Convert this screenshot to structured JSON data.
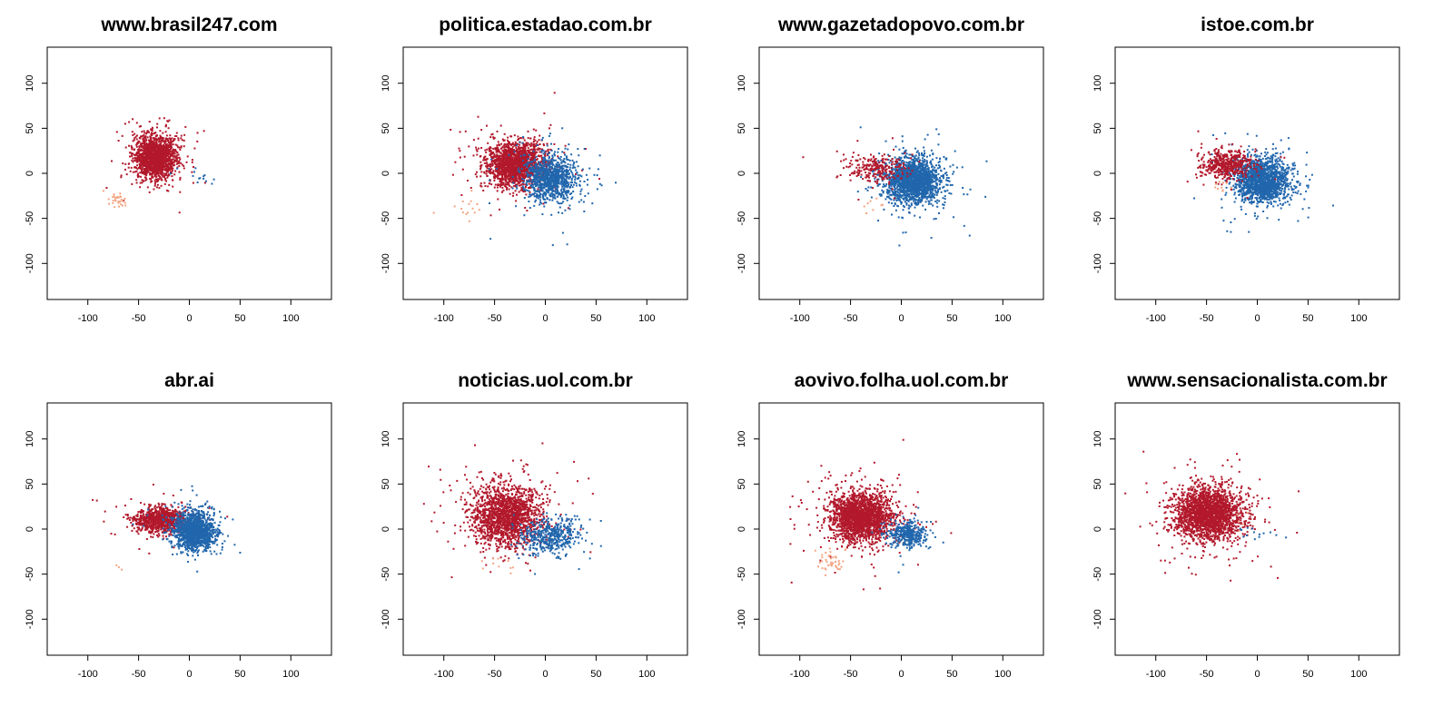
{
  "colors": {
    "left_cluster": "#B2182B",
    "right_cluster": "#2166AC",
    "minor_cluster": "#F4A582",
    "background": "#FFFFFF",
    "axis": "#000000"
  },
  "chart_data": [
    {
      "type": "scatter",
      "title": "www.brasil247.com",
      "xlim": [
        -140,
        140
      ],
      "ylim": [
        -140,
        140
      ],
      "xticks": [
        -100,
        -50,
        0,
        50,
        100
      ],
      "yticks": [
        -100,
        -50,
        0,
        50,
        100
      ],
      "grid": false,
      "clusters": [
        {
          "color": "left_cluster",
          "center": [
            -33,
            18
          ],
          "spread": [
            10,
            12
          ],
          "n": 1600
        },
        {
          "color": "right_cluster",
          "center": [
            5,
            -4
          ],
          "spread": [
            12,
            6
          ],
          "n": 14
        },
        {
          "color": "minor_cluster",
          "center": [
            -70,
            -30
          ],
          "spread": [
            6,
            4
          ],
          "n": 30
        }
      ]
    },
    {
      "type": "scatter",
      "title": "politica.estadao.com.br",
      "xlim": [
        -140,
        140
      ],
      "ylim": [
        -140,
        140
      ],
      "xticks": [
        -100,
        -50,
        0,
        50,
        100
      ],
      "yticks": [
        -100,
        -50,
        0,
        50,
        100
      ],
      "grid": false,
      "clusters": [
        {
          "color": "left_cluster",
          "center": [
            -30,
            10
          ],
          "spread": [
            14,
            12
          ],
          "n": 1700
        },
        {
          "color": "right_cluster",
          "center": [
            5,
            -6
          ],
          "spread": [
            13,
            12
          ],
          "n": 1000
        },
        {
          "color": "minor_cluster",
          "center": [
            -75,
            -40
          ],
          "spread": [
            8,
            6
          ],
          "n": 15
        }
      ]
    },
    {
      "type": "scatter",
      "title": "www.gazetadopovo.com.br",
      "xlim": [
        -140,
        140
      ],
      "ylim": [
        -140,
        140
      ],
      "xticks": [
        -100,
        -50,
        0,
        50,
        100
      ],
      "yticks": [
        -100,
        -50,
        0,
        50,
        100
      ],
      "grid": false,
      "clusters": [
        {
          "color": "right_cluster",
          "center": [
            12,
            -8
          ],
          "spread": [
            13,
            12
          ],
          "n": 1800
        },
        {
          "color": "left_cluster",
          "center": [
            -25,
            5
          ],
          "spread": [
            14,
            8
          ],
          "n": 250
        },
        {
          "color": "minor_cluster",
          "center": [
            -30,
            -35
          ],
          "spread": [
            6,
            4
          ],
          "n": 8
        }
      ]
    },
    {
      "type": "scatter",
      "title": "istoe.com.br",
      "xlim": [
        -140,
        140
      ],
      "ylim": [
        -140,
        140
      ],
      "xticks": [
        -100,
        -50,
        0,
        50,
        100
      ],
      "yticks": [
        -100,
        -50,
        0,
        50,
        100
      ],
      "grid": false,
      "clusters": [
        {
          "color": "right_cluster",
          "center": [
            5,
            -8
          ],
          "spread": [
            13,
            12
          ],
          "n": 1600
        },
        {
          "color": "left_cluster",
          "center": [
            -30,
            10
          ],
          "spread": [
            12,
            8
          ],
          "n": 500
        },
        {
          "color": "minor_cluster",
          "center": [
            -35,
            -15
          ],
          "spread": [
            5,
            4
          ],
          "n": 10
        }
      ]
    },
    {
      "type": "scatter",
      "title": "abr.ai",
      "xlim": [
        -140,
        140
      ],
      "ylim": [
        -140,
        140
      ],
      "xticks": [
        -100,
        -50,
        0,
        50,
        100
      ],
      "yticks": [
        -100,
        -50,
        0,
        50,
        100
      ],
      "grid": false,
      "clusters": [
        {
          "color": "left_cluster",
          "center": [
            -28,
            10
          ],
          "spread": [
            13,
            7
          ],
          "n": 900
        },
        {
          "color": "right_cluster",
          "center": [
            5,
            -2
          ],
          "spread": [
            10,
            10
          ],
          "n": 1300
        },
        {
          "color": "minor_cluster",
          "center": [
            -70,
            -40
          ],
          "spread": [
            3,
            3
          ],
          "n": 3
        }
      ]
    },
    {
      "type": "scatter",
      "title": "noticias.uol.com.br",
      "xlim": [
        -140,
        140
      ],
      "ylim": [
        -140,
        140
      ],
      "xticks": [
        -100,
        -50,
        0,
        50,
        100
      ],
      "yticks": [
        -100,
        -50,
        0,
        50,
        100
      ],
      "grid": false,
      "clusters": [
        {
          "color": "left_cluster",
          "center": [
            -38,
            15
          ],
          "spread": [
            17,
            17
          ],
          "n": 1700
        },
        {
          "color": "right_cluster",
          "center": [
            5,
            -8
          ],
          "spread": [
            14,
            10
          ],
          "n": 450
        },
        {
          "color": "minor_cluster",
          "center": [
            -50,
            -40
          ],
          "spread": [
            10,
            8
          ],
          "n": 10
        }
      ]
    },
    {
      "type": "scatter",
      "title": "aovivo.folha.uol.com.br",
      "xlim": [
        -140,
        140
      ],
      "ylim": [
        -140,
        140
      ],
      "xticks": [
        -100,
        -50,
        0,
        50,
        100
      ],
      "yticks": [
        -100,
        -50,
        0,
        50,
        100
      ],
      "grid": false,
      "clusters": [
        {
          "color": "left_cluster",
          "center": [
            -40,
            13
          ],
          "spread": [
            15,
            13
          ],
          "n": 2000
        },
        {
          "color": "right_cluster",
          "center": [
            7,
            -6
          ],
          "spread": [
            9,
            7
          ],
          "n": 350
        },
        {
          "color": "minor_cluster",
          "center": [
            -70,
            -35
          ],
          "spread": [
            6,
            6
          ],
          "n": 40
        }
      ]
    },
    {
      "type": "scatter",
      "title": "www.sensacionalista.com.br",
      "xlim": [
        -140,
        140
      ],
      "ylim": [
        -140,
        140
      ],
      "xticks": [
        -100,
        -50,
        0,
        50,
        100
      ],
      "yticks": [
        -100,
        -50,
        0,
        50,
        100
      ],
      "grid": false,
      "clusters": [
        {
          "color": "left_cluster",
          "center": [
            -48,
            17
          ],
          "spread": [
            16,
            14
          ],
          "n": 2200
        },
        {
          "color": "right_cluster",
          "center": [
            0,
            -5
          ],
          "spread": [
            12,
            4
          ],
          "n": 14
        },
        {
          "color": "minor_cluster",
          "center": [
            -20,
            10
          ],
          "spread": [
            10,
            10
          ],
          "n": 5
        }
      ]
    }
  ]
}
